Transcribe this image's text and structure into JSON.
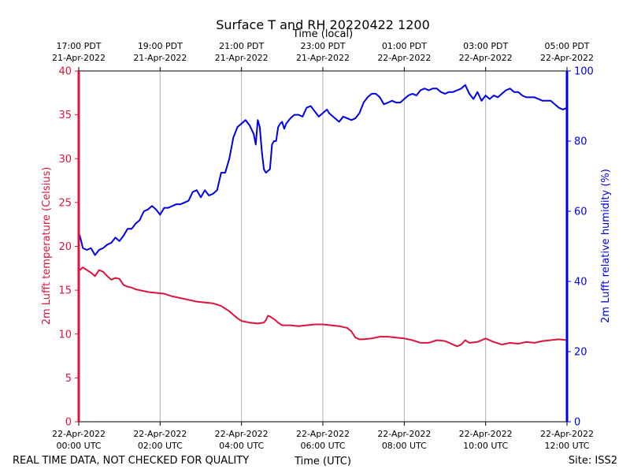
{
  "chart_data": {
    "type": "line",
    "title": "Surface T and RH 20220422 1200",
    "top_axis_label": "Time (local)",
    "xlabel": "Time (UTC)",
    "ylabel_left": "2m Lufft temperature (Celsius)",
    "ylabel_right": "2m Lufft relative humidity (%)",
    "xlim_hours": [
      0,
      12
    ],
    "ylim_left": [
      0,
      40
    ],
    "ylim_right": [
      0,
      100
    ],
    "yticks_left": [
      0,
      5,
      10,
      15,
      20,
      25,
      30,
      35,
      40
    ],
    "yticks_right": [
      0,
      20,
      40,
      60,
      80,
      100
    ],
    "grid": "vertical",
    "xticks_bottom": [
      {
        "hour": 0,
        "line1": "22-Apr-2022",
        "line2": "00:00 UTC"
      },
      {
        "hour": 2,
        "line1": "22-Apr-2022",
        "line2": "02:00 UTC"
      },
      {
        "hour": 4,
        "line1": "22-Apr-2022",
        "line2": "04:00 UTC"
      },
      {
        "hour": 6,
        "line1": "22-Apr-2022",
        "line2": "06:00 UTC"
      },
      {
        "hour": 8,
        "line1": "22-Apr-2022",
        "line2": "08:00 UTC"
      },
      {
        "hour": 10,
        "line1": "22-Apr-2022",
        "line2": "10:00 UTC"
      },
      {
        "hour": 12,
        "line1": "22-Apr-2022",
        "line2": "12:00 UTC"
      }
    ],
    "xticks_top": [
      {
        "hour": 0,
        "line1": "17:00 PDT",
        "line2": "21-Apr-2022"
      },
      {
        "hour": 2,
        "line1": "19:00 PDT",
        "line2": "21-Apr-2022"
      },
      {
        "hour": 4,
        "line1": "21:00 PDT",
        "line2": "21-Apr-2022"
      },
      {
        "hour": 6,
        "line1": "23:00 PDT",
        "line2": "21-Apr-2022"
      },
      {
        "hour": 8,
        "line1": "01:00 PDT",
        "line2": "22-Apr-2022"
      },
      {
        "hour": 10,
        "line1": "03:00 PDT",
        "line2": "22-Apr-2022"
      },
      {
        "hour": 12,
        "line1": "05:00 PDT",
        "line2": "22-Apr-2022"
      }
    ],
    "series": [
      {
        "name": "2m Lufft temperature",
        "axis": "left",
        "color": "#dc143c",
        "x": [
          0.0,
          0.1,
          0.2,
          0.3,
          0.35,
          0.4,
          0.5,
          0.6,
          0.7,
          0.8,
          0.9,
          1.0,
          1.1,
          1.2,
          1.3,
          1.4,
          1.5,
          1.7,
          1.9,
          2.1,
          2.3,
          2.5,
          2.7,
          2.9,
          3.1,
          3.3,
          3.5,
          3.6,
          3.7,
          3.8,
          3.9,
          4.0,
          4.2,
          4.4,
          4.55,
          4.6,
          4.65,
          4.7,
          4.8,
          4.9,
          5.0,
          5.2,
          5.4,
          5.6,
          5.8,
          6.0,
          6.2,
          6.4,
          6.6,
          6.7,
          6.8,
          6.9,
          7.0,
          7.2,
          7.4,
          7.6,
          7.8,
          8.0,
          8.2,
          8.4,
          8.6,
          8.8,
          9.0,
          9.2,
          9.3,
          9.4,
          9.5,
          9.6,
          9.8,
          10.0,
          10.2,
          10.4,
          10.6,
          10.8,
          11.0,
          11.2,
          11.4,
          11.6,
          11.8,
          12.0
        ],
        "values": [
          17.2,
          17.6,
          17.3,
          17.0,
          16.8,
          16.6,
          17.3,
          17.1,
          16.6,
          16.2,
          16.4,
          16.3,
          15.6,
          15.4,
          15.3,
          15.1,
          15.0,
          14.8,
          14.7,
          14.6,
          14.3,
          14.1,
          13.9,
          13.7,
          13.6,
          13.5,
          13.2,
          12.9,
          12.6,
          12.2,
          11.8,
          11.5,
          11.3,
          11.2,
          11.3,
          11.6,
          12.1,
          12.0,
          11.7,
          11.3,
          11.0,
          11.0,
          10.9,
          11.0,
          11.1,
          11.1,
          11.0,
          10.9,
          10.7,
          10.3,
          9.6,
          9.4,
          9.4,
          9.5,
          9.7,
          9.7,
          9.6,
          9.5,
          9.3,
          9.0,
          9.0,
          9.3,
          9.2,
          8.8,
          8.6,
          8.8,
          9.3,
          9.0,
          9.1,
          9.5,
          9.1,
          8.8,
          9.0,
          8.9,
          9.1,
          9.0,
          9.2,
          9.3,
          9.4,
          9.3
        ]
      },
      {
        "name": "2m Lufft relative humidity",
        "axis": "right",
        "color": "#0000e6",
        "x": [
          0.0,
          0.05,
          0.1,
          0.2,
          0.3,
          0.4,
          0.5,
          0.6,
          0.7,
          0.8,
          0.9,
          1.0,
          1.1,
          1.2,
          1.3,
          1.4,
          1.5,
          1.6,
          1.7,
          1.8,
          1.9,
          2.0,
          2.1,
          2.2,
          2.3,
          2.4,
          2.5,
          2.6,
          2.7,
          2.8,
          2.9,
          3.0,
          3.1,
          3.2,
          3.3,
          3.4,
          3.5,
          3.6,
          3.7,
          3.8,
          3.9,
          4.0,
          4.1,
          4.2,
          4.3,
          4.35,
          4.4,
          4.45,
          4.5,
          4.55,
          4.6,
          4.65,
          4.7,
          4.75,
          4.8,
          4.85,
          4.9,
          4.95,
          5.0,
          5.05,
          5.1,
          5.2,
          5.3,
          5.4,
          5.5,
          5.6,
          5.7,
          5.8,
          5.9,
          6.0,
          6.1,
          6.15,
          6.2,
          6.3,
          6.4,
          6.5,
          6.6,
          6.7,
          6.8,
          6.9,
          7.0,
          7.1,
          7.2,
          7.3,
          7.4,
          7.5,
          7.6,
          7.7,
          7.8,
          7.9,
          8.0,
          8.1,
          8.2,
          8.3,
          8.4,
          8.5,
          8.6,
          8.7,
          8.8,
          8.9,
          9.0,
          9.1,
          9.2,
          9.3,
          9.4,
          9.5,
          9.6,
          9.7,
          9.8,
          9.9,
          10.0,
          10.1,
          10.2,
          10.3,
          10.4,
          10.5,
          10.6,
          10.7,
          10.8,
          10.9,
          11.0,
          11.1,
          11.2,
          11.3,
          11.4,
          11.5,
          11.6,
          11.7,
          11.8,
          11.9,
          12.0
        ],
        "values": [
          54,
          52,
          49.5,
          49,
          49.5,
          47.5,
          49,
          49.5,
          50.5,
          51,
          52.5,
          51.5,
          53,
          55,
          55,
          56.5,
          57.5,
          60,
          60.5,
          61.5,
          60.5,
          59,
          61,
          61,
          61.5,
          62,
          62,
          62.5,
          63,
          65.5,
          66,
          64,
          66,
          64.5,
          65,
          66,
          71,
          71,
          75,
          81,
          84,
          85,
          86,
          84.5,
          82,
          79,
          86,
          84,
          77,
          72,
          71,
          71.5,
          72,
          79,
          80,
          80,
          84,
          85,
          85.5,
          83.5,
          85,
          86.5,
          87.5,
          87.5,
          87,
          89.5,
          90,
          88.5,
          87,
          88,
          89,
          88,
          87.5,
          86.5,
          85.5,
          87,
          86.5,
          86,
          86.5,
          88,
          91,
          92.5,
          93.5,
          93.5,
          92.5,
          90.5,
          91,
          91.5,
          91,
          91,
          92,
          93,
          93.5,
          93,
          94.5,
          95,
          94.5,
          95,
          95,
          94,
          93.5,
          94,
          94,
          94.5,
          95,
          96,
          93.5,
          92,
          94,
          91.5,
          93,
          92,
          93,
          92.5,
          93.5,
          94.5,
          95,
          94,
          94,
          93,
          92.5,
          92.5,
          92.5,
          92,
          91.5,
          91.5,
          91.5,
          90.5,
          89.5,
          89,
          89.5
        ]
      }
    ]
  },
  "footer": {
    "left_note": "REAL TIME DATA, NOT CHECKED FOR QUALITY",
    "site": "Site: ISS2"
  }
}
